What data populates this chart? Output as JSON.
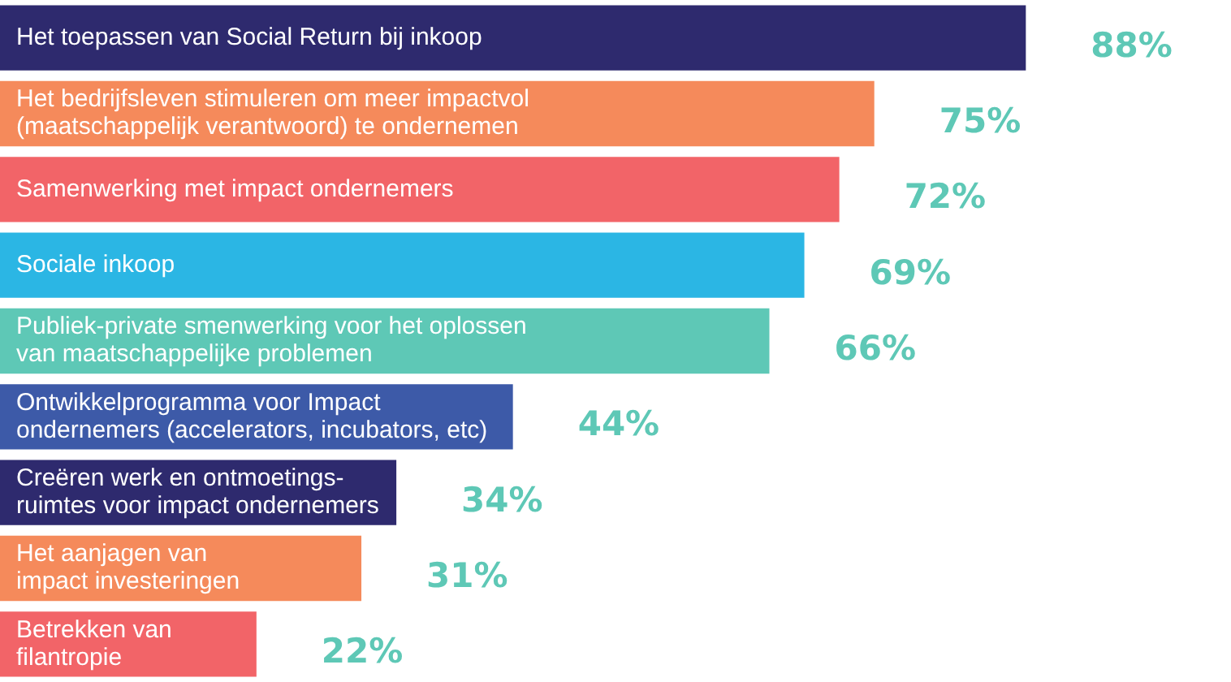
{
  "chart_data": {
    "type": "bar",
    "orientation": "horizontal",
    "legend": false,
    "categories": [
      "Het toepassen van Social Return bij inkoop",
      "Het bedrijfsleven stimuleren om meer impactvol\n(maatschappelijk verantwoord) te ondernemen",
      "Samenwerking met impact ondernemers",
      "Sociale inkoop",
      "Publiek-private smenwerking voor het oplossen\nvan maatschappelijke problemen",
      "Ontwikkelprogramma voor Impact\nondernemers (accelerators, incubators, etc)",
      "Creëren werk en ontmoetings-\nruimtes voor impact ondernemers",
      "Het aanjagen van\nimpact investeringen",
      "Betrekken van\nfilantropie"
    ],
    "values": [
      88,
      75,
      72,
      69,
      66,
      44,
      34,
      31,
      22
    ],
    "value_labels": [
      "88%",
      "75%",
      "72%",
      "69%",
      "66%",
      "44%",
      "34%",
      "31%",
      "22%"
    ],
    "colors": [
      "#2e2a6e",
      "#f58a5b",
      "#f26468",
      "#2bb6e4",
      "#5ec8b6",
      "#3d5aa8",
      "#2e2a6e",
      "#f58a5b",
      "#f26468"
    ]
  }
}
